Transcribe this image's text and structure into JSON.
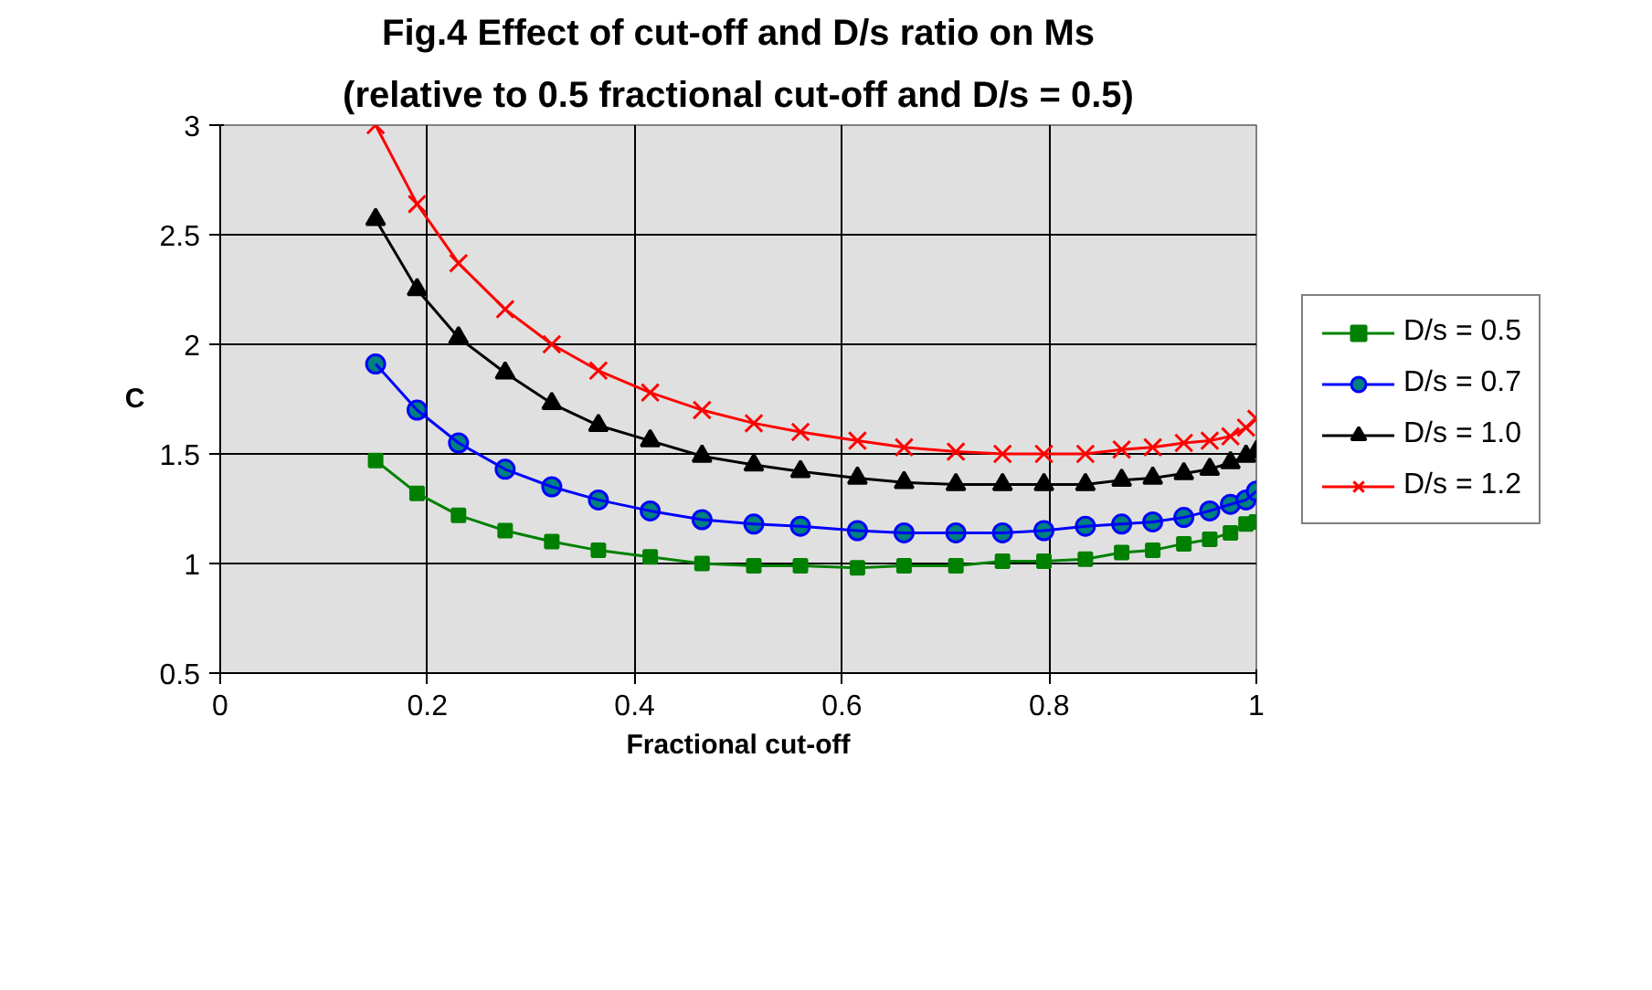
{
  "chart_data": {
    "type": "line",
    "title": "Fig.4 Effect of cut-off and D/s ratio on Ms",
    "subtitle": "(relative to 0.5 fractional cut-off and D/s = 0.5)",
    "xlabel": "Fractional cut-off",
    "ylabel": "C",
    "x": [
      0.15,
      0.19,
      0.23,
      0.275,
      0.32,
      0.365,
      0.415,
      0.465,
      0.515,
      0.56,
      0.615,
      0.66,
      0.71,
      0.755,
      0.795,
      0.835,
      0.87,
      0.9,
      0.93,
      0.955,
      0.975,
      0.99,
      1.0
    ],
    "series": [
      {
        "name": "D/s = 0.5",
        "color": "#008000",
        "marker": "square",
        "values": [
          1.47,
          1.32,
          1.22,
          1.15,
          1.1,
          1.06,
          1.03,
          1.0,
          0.99,
          0.99,
          0.98,
          0.99,
          0.99,
          1.01,
          1.01,
          1.02,
          1.05,
          1.06,
          1.09,
          1.11,
          1.14,
          1.18,
          1.19
        ]
      },
      {
        "name": "D/s = 0.7",
        "color": "#0000ff",
        "marker": "circle",
        "values": [
          1.91,
          1.7,
          1.55,
          1.43,
          1.35,
          1.29,
          1.24,
          1.2,
          1.18,
          1.17,
          1.15,
          1.14,
          1.14,
          1.14,
          1.15,
          1.17,
          1.18,
          1.19,
          1.21,
          1.24,
          1.27,
          1.29,
          1.33
        ]
      },
      {
        "name": "D/s = 1.0",
        "color": "#000000",
        "marker": "triangle",
        "values": [
          2.57,
          2.25,
          2.03,
          1.87,
          1.73,
          1.63,
          1.56,
          1.49,
          1.45,
          1.42,
          1.39,
          1.37,
          1.36,
          1.36,
          1.36,
          1.36,
          1.38,
          1.39,
          1.41,
          1.43,
          1.46,
          1.49,
          1.51
        ]
      },
      {
        "name": "D/s = 1.2",
        "color": "#ff0000",
        "marker": "cross",
        "values": [
          3.0,
          2.64,
          2.37,
          2.16,
          2.0,
          1.88,
          1.78,
          1.7,
          1.64,
          1.6,
          1.56,
          1.53,
          1.51,
          1.5,
          1.5,
          1.5,
          1.52,
          1.53,
          1.55,
          1.56,
          1.58,
          1.62,
          1.66
        ]
      }
    ],
    "xlim": [
      0,
      1
    ],
    "ylim": [
      0.5,
      3
    ],
    "xticks": [
      0,
      0.2,
      0.4,
      0.6,
      0.8,
      1
    ],
    "yticks": [
      0.5,
      1,
      1.5,
      2,
      2.5,
      3
    ],
    "grid": true,
    "legend": "right"
  }
}
